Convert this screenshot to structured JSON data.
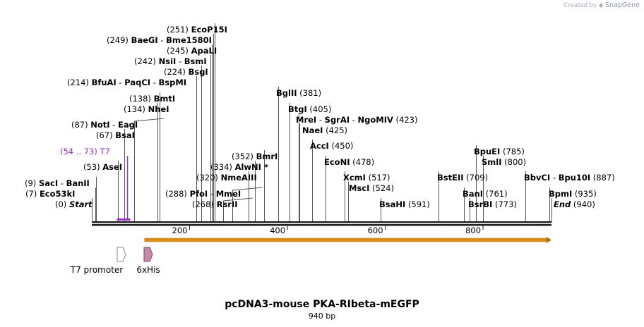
{
  "credit": {
    "prefix": "Created by",
    "brand": "SnapGene"
  },
  "plasmid": {
    "name": "pcDNA3-mouse PKA-RIbeta-mEGFP",
    "length_label": "940 bp",
    "length_bp": 940
  },
  "ruler_ticks": [
    {
      "bp": 200,
      "label": "200"
    },
    {
      "bp": 400,
      "label": "400"
    },
    {
      "bp": 600,
      "label": "600"
    },
    {
      "bp": 800,
      "label": "800"
    }
  ],
  "sites": [
    {
      "id": "start",
      "pos_label": "(0)",
      "names": [
        "Start"
      ],
      "italic": true,
      "bp": 0
    },
    {
      "id": "eco53ki",
      "pos_label": "(7)",
      "names": [
        "Eco53kI"
      ],
      "bp": 7
    },
    {
      "id": "saci",
      "pos_label": "(9)",
      "names": [
        "SacI",
        "BanII"
      ],
      "bp": 9
    },
    {
      "id": "asei",
      "pos_label": "(53)",
      "names": [
        "AseI"
      ],
      "bp": 53
    },
    {
      "id": "bsai",
      "pos_label": "(67)",
      "names": [
        "BsaI"
      ],
      "bp": 67
    },
    {
      "id": "noti",
      "pos_label": "(87)",
      "names": [
        "NotI",
        "EagI"
      ],
      "bp": 87
    },
    {
      "id": "nhei",
      "pos_label": "(134)",
      "names": [
        "NheI"
      ],
      "bp": 134
    },
    {
      "id": "bmti",
      "pos_label": "(138)",
      "names": [
        "BmtI"
      ],
      "bp": 138
    },
    {
      "id": "bfuai",
      "pos_label": "(214)",
      "names": [
        "BfuAI",
        "PaqCI",
        "BspMI"
      ],
      "bp": 214
    },
    {
      "id": "bsgi",
      "pos_label": "(224)",
      "names": [
        "BsgI"
      ],
      "bp": 224
    },
    {
      "id": "nsii",
      "pos_label": "(242)",
      "names": [
        "NsiI",
        "BsmI"
      ],
      "bp": 242
    },
    {
      "id": "apali",
      "pos_label": "(245)",
      "names": [
        "ApaLI"
      ],
      "bp": 245
    },
    {
      "id": "baegi",
      "pos_label": "(249)",
      "names": [
        "BaeGI",
        "Bme1580I"
      ],
      "bp": 249
    },
    {
      "id": "ecop15i",
      "pos_label": "(251)",
      "names": [
        "EcoP15I"
      ],
      "bp": 251
    },
    {
      "id": "rsrii",
      "pos_label": "(268)",
      "names": [
        "RsrII"
      ],
      "bp": 268
    },
    {
      "id": "pfoi",
      "pos_label": "(288)",
      "names": [
        "PfoI",
        "MmeI"
      ],
      "bp": 288
    },
    {
      "id": "nmeaiii",
      "pos_label": "(320)",
      "names": [
        "NmeAIII"
      ],
      "bp": 320
    },
    {
      "id": "alwni",
      "pos_label": "(334)",
      "names": [
        "AlwNI *"
      ],
      "bp": 334
    },
    {
      "id": "bmri",
      "pos_label": "(352)",
      "names": [
        "BmrI"
      ],
      "bp": 352
    },
    {
      "id": "bglii",
      "pos_label": "(381)",
      "names": [
        "BglII"
      ],
      "bp": 381
    },
    {
      "id": "btgi",
      "pos_label": "(405)",
      "names": [
        "BtgI"
      ],
      "bp": 405
    },
    {
      "id": "mrei",
      "pos_label": "(423)",
      "names": [
        "MreI",
        "SgrAI",
        "NgoMIV"
      ],
      "bp": 423
    },
    {
      "id": "naei",
      "pos_label": "(425)",
      "names": [
        "NaeI"
      ],
      "bp": 425
    },
    {
      "id": "acci",
      "pos_label": "(450)",
      "names": [
        "AccI"
      ],
      "bp": 450
    },
    {
      "id": "econi",
      "pos_label": "(478)",
      "names": [
        "EcoNI"
      ],
      "bp": 478
    },
    {
      "id": "xcmi",
      "pos_label": "(517)",
      "names": [
        "XcmI"
      ],
      "bp": 517
    },
    {
      "id": "msci",
      "pos_label": "(524)",
      "names": [
        "MscI"
      ],
      "bp": 524
    },
    {
      "id": "bsahi",
      "pos_label": "(591)",
      "names": [
        "BsaHI"
      ],
      "bp": 591
    },
    {
      "id": "bstEII",
      "pos_label": "(709)",
      "names": [
        "BstEII"
      ],
      "bp": 709
    },
    {
      "id": "banI",
      "pos_label": "(761)",
      "names": [
        "BanI"
      ],
      "bp": 761
    },
    {
      "id": "bsrbi",
      "pos_label": "(773)",
      "names": [
        "BsrBI"
      ],
      "bp": 773
    },
    {
      "id": "bpuei",
      "pos_label": "(785)",
      "names": [
        "BpuEI"
      ],
      "bp": 785
    },
    {
      "id": "smli",
      "pos_label": "(800)",
      "names": [
        "SmlI"
      ],
      "bp": 800
    },
    {
      "id": "bbvci",
      "pos_label": "(887)",
      "names": [
        "BbvCI",
        "Bpu10I"
      ],
      "bp": 887
    },
    {
      "id": "bpmi",
      "pos_label": "(935)",
      "names": [
        "BpmI"
      ],
      "bp": 935
    },
    {
      "id": "end",
      "pos_label": "(940)",
      "names": [
        "End"
      ],
      "italic": true,
      "bp": 940
    }
  ],
  "primer": {
    "label": "T7",
    "range_label": "(54 .. 73)",
    "start_bp": 54,
    "end_bp": 73,
    "color": "#9b30c8"
  },
  "features": [
    {
      "id": "t7-promoter",
      "label": "T7 promoter",
      "start_bp": 54,
      "end_bp": 73,
      "fill": "#ffffff",
      "stroke": "#888888"
    },
    {
      "id": "6xhis",
      "label": "6xHis",
      "start_bp": 108,
      "end_bp": 125,
      "fill": "#c48aa8",
      "stroke": "#7a4a62"
    }
  ],
  "orf": {
    "start_bp": 108,
    "end_bp": 940,
    "fill": "#f0a020"
  }
}
